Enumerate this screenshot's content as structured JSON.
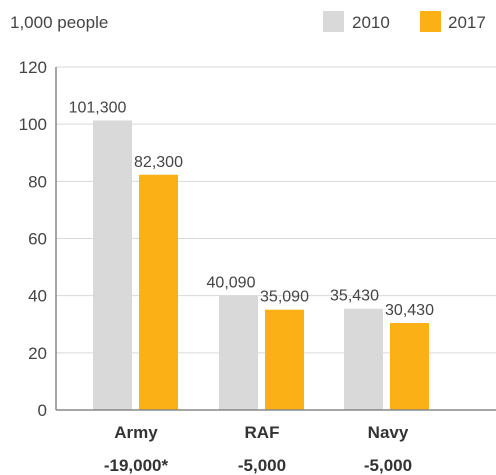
{
  "chart_data": {
    "type": "bar",
    "unit_label": "1,000 people",
    "categories": [
      "Army",
      "RAF",
      "Navy"
    ],
    "changes": [
      "-19,000*",
      "-5,000",
      "-5,000"
    ],
    "series": [
      {
        "name": "2010",
        "color": "#d9d9d9",
        "values": [
          101.3,
          40.09,
          35.43
        ],
        "labels": [
          "101,300",
          "40,090",
          "35,430"
        ]
      },
      {
        "name": "2017",
        "color": "#fbb016",
        "values": [
          82.3,
          35.09,
          30.43
        ],
        "labels": [
          "82,300",
          "35,090",
          "30,430"
        ]
      }
    ],
    "ylim": [
      0,
      120
    ],
    "yticks": [
      0,
      20,
      40,
      60,
      80,
      100,
      120
    ],
    "grid": true,
    "legend_position": "top-right"
  }
}
